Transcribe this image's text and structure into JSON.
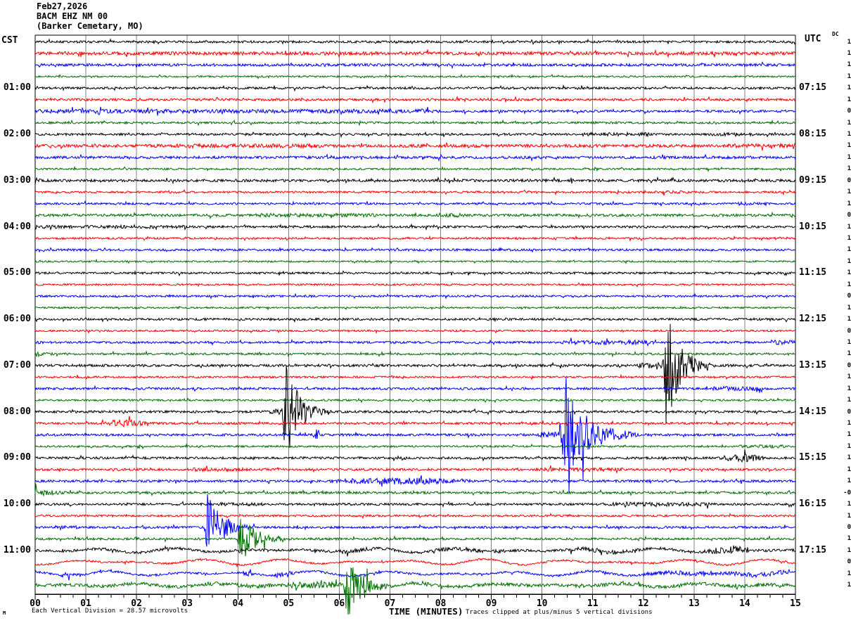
{
  "header": {
    "date": "Feb27,2026",
    "station": "BACM EHZ NM 00",
    "location": "(Barker Cemetary, MO)"
  },
  "left_axis": {
    "title": "CST",
    "labels": [
      "01:00",
      "02:00",
      "03:00",
      "04:00",
      "05:00",
      "06:00",
      "07:00",
      "08:00",
      "09:00",
      "10:00",
      "11:00"
    ]
  },
  "right_axis": {
    "title": "UTC",
    "dc_title": "DC",
    "labels": [
      "07:15",
      "08:15",
      "09:15",
      "10:15",
      "11:15",
      "12:15",
      "13:15",
      "14:15",
      "15:15",
      "16:15",
      "17:15"
    ],
    "dc_values": [
      "1",
      "1",
      "1",
      "1",
      "1",
      "1",
      "0",
      "1",
      "1",
      "1",
      "1",
      "1",
      "0",
      "1",
      "1",
      "0",
      "1",
      "1",
      "1",
      "1",
      "1",
      "1",
      "0",
      "1",
      "1",
      "0",
      "1",
      "1",
      "0",
      "1",
      "1",
      "1",
      "0",
      "1",
      "1",
      "1",
      "1",
      "1",
      "1",
      "-0",
      "1",
      "1",
      "0",
      "1",
      "1",
      "0",
      "1",
      "1"
    ]
  },
  "bottom_axis": {
    "title": "TIME (MINUTES)",
    "tick_labels": [
      "00",
      "01",
      "02",
      "03",
      "04",
      "05",
      "06",
      "07",
      "08",
      "09",
      "10",
      "11",
      "12",
      "13",
      "14",
      "15"
    ],
    "left_note": "Each Vertical Division =  28.57 microvolts",
    "right_note": "Traces clipped at plus/minus 5 vertical divisions",
    "corner_mark": "M"
  },
  "colors": {
    "black": "#000000",
    "red": "#ff0000",
    "blue": "#0000ff",
    "green": "#006e00",
    "grid": "#808080",
    "axis": "#000000"
  },
  "chart_data": {
    "type": "line",
    "subtype": "helicorder-seismogram",
    "minutes_per_line": 15,
    "x_range": [
      0,
      15
    ],
    "xlabel": "TIME (MINUTES)",
    "clip_divisions": 5,
    "microvolts_per_division": 28.57,
    "grid": "vertical-every-minute",
    "color_cycle": [
      "black",
      "red",
      "blue",
      "green"
    ],
    "rows": [
      {
        "cst": "00:00",
        "color": "black",
        "noise": 1.6,
        "wave": 0,
        "events": []
      },
      {
        "cst": "00:15",
        "color": "red",
        "noise": 2.4,
        "wave": 0,
        "events": []
      },
      {
        "cst": "00:30",
        "color": "blue",
        "noise": 1.9,
        "wave": 0,
        "events": []
      },
      {
        "cst": "00:45",
        "color": "green",
        "noise": 1.2,
        "wave": 0,
        "events": []
      },
      {
        "cst": "01:00",
        "color": "black",
        "noise": 1.6,
        "wave": 0,
        "events": []
      },
      {
        "cst": "01:15",
        "color": "red",
        "noise": 1.7,
        "wave": 0,
        "events": []
      },
      {
        "cst": "01:30",
        "color": "blue",
        "noise": 1.7,
        "wave": 0,
        "events": [
          [
            0,
            8,
            2.8,
            "flat"
          ]
        ]
      },
      {
        "cst": "01:45",
        "color": "green",
        "noise": 1.5,
        "wave": 0,
        "events": []
      },
      {
        "cst": "02:00",
        "color": "black",
        "noise": 1.6,
        "wave": 0,
        "events": [
          [
            10.8,
            12.1,
            2.6,
            "flat"
          ],
          [
            13.4,
            14.2,
            2.3,
            "flat"
          ]
        ]
      },
      {
        "cst": "02:15",
        "color": "red",
        "noise": 2.2,
        "wave": 0,
        "events": [
          [
            2.8,
            5.7,
            3.0,
            "flat"
          ],
          [
            13.6,
            15,
            3.0,
            "flat"
          ]
        ]
      },
      {
        "cst": "02:30",
        "color": "blue",
        "noise": 1.9,
        "wave": 0,
        "events": []
      },
      {
        "cst": "02:45",
        "color": "green",
        "noise": 1.3,
        "wave": 0,
        "events": [
          [
            10.95,
            11.45,
            3.5,
            "burst"
          ]
        ]
      },
      {
        "cst": "03:00",
        "color": "black",
        "noise": 1.9,
        "wave": 0,
        "events": [
          [
            0,
            0.25,
            6,
            "decay"
          ]
        ]
      },
      {
        "cst": "03:15",
        "color": "red",
        "noise": 1.4,
        "wave": 0,
        "events": [
          [
            12.3,
            12.9,
            2.2,
            "flat"
          ]
        ]
      },
      {
        "cst": "03:30",
        "color": "blue",
        "noise": 1.5,
        "wave": 0,
        "events": [
          [
            13.7,
            14.3,
            2.4,
            "flat"
          ]
        ]
      },
      {
        "cst": "03:45",
        "color": "green",
        "noise": 1.9,
        "wave": 0,
        "events": [
          [
            4.3,
            6.7,
            2.6,
            "flat"
          ],
          [
            7.85,
            8.6,
            3.5,
            "spindle"
          ]
        ]
      },
      {
        "cst": "04:00",
        "color": "black",
        "noise": 1.6,
        "wave": 0,
        "events": [
          [
            0,
            3.0,
            2.4,
            "flat"
          ]
        ]
      },
      {
        "cst": "04:15",
        "color": "red",
        "noise": 1.4,
        "wave": 0,
        "events": []
      },
      {
        "cst": "04:30",
        "color": "blue",
        "noise": 1.6,
        "wave": 0,
        "events": []
      },
      {
        "cst": "04:45",
        "color": "green",
        "noise": 1.2,
        "wave": 0,
        "events": []
      },
      {
        "cst": "05:00",
        "color": "black",
        "noise": 1.5,
        "wave": 0,
        "events": []
      },
      {
        "cst": "05:15",
        "color": "red",
        "noise": 1.3,
        "wave": 0,
        "events": []
      },
      {
        "cst": "05:30",
        "color": "blue",
        "noise": 1.4,
        "wave": 0,
        "events": []
      },
      {
        "cst": "05:45",
        "color": "green",
        "noise": 1.2,
        "wave": 0,
        "events": []
      },
      {
        "cst": "06:00",
        "color": "black",
        "noise": 1.6,
        "wave": 0,
        "events": []
      },
      {
        "cst": "06:15",
        "color": "red",
        "noise": 1.3,
        "wave": 0,
        "events": []
      },
      {
        "cst": "06:30",
        "color": "blue",
        "noise": 1.6,
        "wave": 0,
        "events": [
          [
            10.4,
            12.1,
            3.2,
            "flat"
          ],
          [
            14.5,
            15,
            3.4,
            "flat"
          ]
        ]
      },
      {
        "cst": "06:45",
        "color": "green",
        "noise": 1.5,
        "wave": 0,
        "events": [
          [
            0,
            0.95,
            4.5,
            "decay"
          ]
        ]
      },
      {
        "cst": "07:00",
        "color": "black",
        "noise": 1.8,
        "wave": 0,
        "events": [
          [
            11.9,
            12.35,
            4,
            "flat"
          ],
          [
            12.35,
            13.15,
            88,
            "quake"
          ],
          [
            13.1,
            13.9,
            7,
            "decay"
          ]
        ]
      },
      {
        "cst": "07:15",
        "color": "red",
        "noise": 1.4,
        "wave": 0,
        "events": []
      },
      {
        "cst": "07:30",
        "color": "blue",
        "noise": 1.6,
        "wave": 0,
        "events": [
          [
            13.35,
            14.35,
            3.2,
            "flat"
          ]
        ]
      },
      {
        "cst": "07:45",
        "color": "green",
        "noise": 1.3,
        "wave": 0,
        "events": []
      },
      {
        "cst": "08:00",
        "color": "black",
        "noise": 1.7,
        "wave": 0,
        "events": [
          [
            4.6,
            4.85,
            4,
            "flat"
          ],
          [
            4.85,
            5.5,
            86,
            "quake"
          ],
          [
            5.5,
            6.1,
            9,
            "decay"
          ]
        ]
      },
      {
        "cst": "08:15",
        "color": "red",
        "noise": 1.6,
        "wave": 0,
        "events": [
          [
            1.15,
            2.35,
            5.5,
            "spindle"
          ]
        ]
      },
      {
        "cst": "08:30",
        "color": "blue",
        "noise": 1.7,
        "wave": 0,
        "events": [
          [
            5.5,
            5.75,
            8,
            "burst"
          ],
          [
            9.9,
            10.3,
            4,
            "flat"
          ],
          [
            10.3,
            11.6,
            70,
            "quake"
          ],
          [
            11.6,
            12.3,
            7,
            "decay"
          ]
        ]
      },
      {
        "cst": "08:45",
        "color": "green",
        "noise": 1.3,
        "wave": 0,
        "events": [
          [
            13.9,
            14.8,
            2.4,
            "flat"
          ]
        ]
      },
      {
        "cst": "09:00",
        "color": "black",
        "noise": 1.7,
        "wave": 0,
        "events": [
          [
            13.3,
            14.55,
            5.5,
            "spindle"
          ]
        ]
      },
      {
        "cst": "09:15",
        "color": "red",
        "noise": 1.6,
        "wave": 0,
        "events": [
          [
            3.1,
            4.1,
            2.6,
            "flat"
          ],
          [
            9.8,
            11.6,
            2.6,
            "flat"
          ]
        ]
      },
      {
        "cst": "09:30",
        "color": "blue",
        "noise": 1.7,
        "wave": 0,
        "events": [
          [
            5.3,
            9.1,
            5,
            "spindle"
          ]
        ]
      },
      {
        "cst": "09:45",
        "color": "green",
        "noise": 1.7,
        "wave": 0,
        "events": [
          [
            0,
            1.45,
            5.5,
            "decay"
          ]
        ]
      },
      {
        "cst": "10:00",
        "color": "black",
        "noise": 1.6,
        "wave": 0,
        "events": [
          [
            3.6,
            4.6,
            2.4,
            "flat"
          ],
          [
            11.3,
            13.3,
            2.8,
            "flat"
          ]
        ]
      },
      {
        "cst": "10:15",
        "color": "red",
        "noise": 1.4,
        "wave": 0,
        "events": []
      },
      {
        "cst": "10:30",
        "color": "blue",
        "noise": 1.6,
        "wave": 0,
        "events": [
          [
            0.4,
            0.9,
            2.5,
            "flat"
          ],
          [
            3.3,
            4.15,
            50,
            "quake"
          ],
          [
            4.15,
            4.7,
            5,
            "decay"
          ]
        ]
      },
      {
        "cst": "10:45",
        "color": "green",
        "noise": 1.6,
        "wave": 0,
        "events": [
          [
            1.9,
            2.3,
            3,
            "burst"
          ],
          [
            3.95,
            4.8,
            38,
            "quake"
          ],
          [
            4.8,
            5.4,
            5,
            "decay"
          ]
        ]
      },
      {
        "cst": "11:00",
        "color": "black",
        "noise": 1.9,
        "wave": 1.8,
        "events": [
          [
            2.3,
            2.75,
            3,
            "burst"
          ],
          [
            5.9,
            6.7,
            3,
            "flat"
          ],
          [
            7.9,
            9.3,
            2.8,
            "flat"
          ],
          [
            10.5,
            11.9,
            3.2,
            "flat"
          ],
          [
            13.05,
            14.25,
            6,
            "spindle"
          ]
        ]
      },
      {
        "cst": "11:15",
        "color": "red",
        "noise": 1.3,
        "wave": 2.4,
        "events": [
          [
            13.0,
            13.15,
            6,
            "burst"
          ]
        ]
      },
      {
        "cst": "11:30",
        "color": "blue",
        "noise": 1.5,
        "wave": 2.0,
        "events": [
          [
            0.35,
            1.05,
            3.5,
            "spindle"
          ],
          [
            4.05,
            4.6,
            5,
            "burst"
          ],
          [
            4.65,
            5.15,
            5,
            "spindle"
          ],
          [
            12.0,
            14.9,
            3.2,
            "flat"
          ]
        ]
      },
      {
        "cst": "11:45",
        "color": "green",
        "noise": 2.3,
        "wave": 1.5,
        "events": [
          [
            2.2,
            2.6,
            3,
            "burst"
          ],
          [
            3.4,
            5.1,
            2.8,
            "flat"
          ],
          [
            5.0,
            6.0,
            4.5,
            "flat"
          ],
          [
            6.05,
            6.8,
            55,
            "quake"
          ],
          [
            6.8,
            7.5,
            6,
            "decay"
          ],
          [
            13.75,
            14.25,
            5,
            "burst"
          ]
        ]
      }
    ]
  }
}
